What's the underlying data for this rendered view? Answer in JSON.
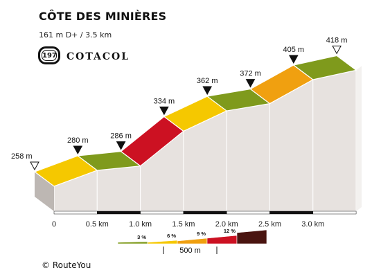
{
  "header": {
    "title": "CÔTE DES MINIÈRES",
    "subtitle": "161 m D+ / 3.5 km",
    "badge_number": "197",
    "brand": "COTACOL"
  },
  "footer": {
    "copyright": "© RouteYou"
  },
  "chart_data": {
    "type": "area",
    "title": "CÔTE DES MINIÈRES",
    "xlabel": "",
    "ylabel": "",
    "x_unit": "km",
    "xlim": [
      0,
      3.5
    ],
    "ylim": [
      240,
      425
    ],
    "grid": false,
    "x_ticks": [
      {
        "value": 0,
        "label": "0"
      },
      {
        "value": 0.5,
        "label": "0.5 km"
      },
      {
        "value": 1.0,
        "label": "1.0 km"
      },
      {
        "value": 1.5,
        "label": "1.5 km"
      },
      {
        "value": 2.0,
        "label": "2.0 km"
      },
      {
        "value": 2.5,
        "label": "2.5 km"
      },
      {
        "value": 3.0,
        "label": "3.0 km"
      }
    ],
    "profile": [
      {
        "x": 0.0,
        "y": 258,
        "label": "258 m",
        "marker": "open"
      },
      {
        "x": 0.5,
        "y": 280,
        "label": "280 m",
        "marker": "filled"
      },
      {
        "x": 1.0,
        "y": 286,
        "label": "286 m",
        "marker": "filled"
      },
      {
        "x": 1.5,
        "y": 334,
        "label": "334 m",
        "marker": "filled"
      },
      {
        "x": 2.0,
        "y": 362,
        "label": "362 m",
        "marker": "filled"
      },
      {
        "x": 2.5,
        "y": 372,
        "label": "372 m",
        "marker": "filled"
      },
      {
        "x": 3.0,
        "y": 405,
        "label": "405 m",
        "marker": "filled"
      },
      {
        "x": 3.5,
        "y": 418,
        "label": "418 m",
        "marker": "open"
      }
    ],
    "segment_colors": [
      "#f5c800",
      "#7f9a1c",
      "#cc1122",
      "#f5c800",
      "#7f9a1c",
      "#f0a010",
      "#7f9a1c"
    ],
    "legend": {
      "items": [
        {
          "label": "3 %",
          "color": "#7f9a1c"
        },
        {
          "label": "6 %",
          "color": "#f5c800"
        },
        {
          "label": "9 %",
          "color": "#f0a010"
        },
        {
          "label": "12 %",
          "color": "#cc1122"
        },
        {
          "label": "",
          "color": "#4a1410"
        }
      ],
      "scale_label": "500 m"
    }
  }
}
